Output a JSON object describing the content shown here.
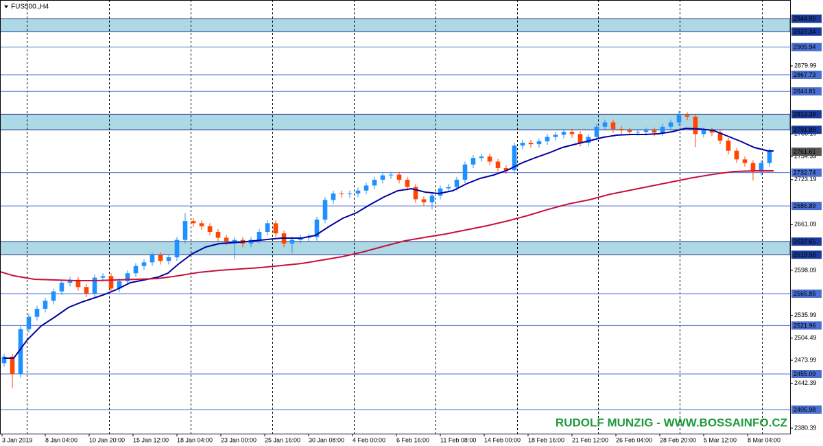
{
  "chart_data": {
    "type": "candlestick",
    "title": "FUS500.,H4",
    "watermark": "RUDOLF MUNZIG - WWW.BOSSAINFO.CZ",
    "up_color": "#1e90ff",
    "down_color": "#ff4500",
    "x": [
      1.5,
      4.5,
      7.5,
      10.5,
      13.5,
      16.5,
      19.5,
      22.5,
      25.5,
      28.5,
      31.5,
      34.5,
      37.5,
      40.5,
      43.5,
      46.5,
      49.5,
      52.5,
      55.5,
      58.5,
      61.5,
      64.5,
      67.5,
      70.5,
      73.5,
      76.5,
      79.5,
      82.5,
      85.5,
      88.5,
      91.5,
      94.5,
      97.5,
      100.5,
      103.5,
      106.5,
      109.5,
      112.5,
      115.5,
      118.5,
      121.5,
      124.5,
      127.5,
      130.5,
      133.5,
      136.5,
      139.5,
      142.5,
      145.5,
      148.5,
      151.5,
      154.5,
      157.5,
      160.5,
      163.5,
      166.5,
      169.5,
      172.5,
      175.5,
      178.5,
      181.5,
      184.5,
      187.5,
      190.5,
      193.5,
      196.5,
      199.5,
      202.5,
      205.5,
      208.5,
      211.5,
      214.5,
      217.5,
      220.5,
      223.5,
      226.5,
      229.5,
      232.5,
      235.5,
      238.5,
      241.5,
      244.5,
      247.5,
      250.5,
      253.5,
      256.5,
      259.5,
      262.5,
      265.5,
      268.5,
      271.5,
      274.5,
      277.5,
      280.5
    ],
    "open": [
      2470,
      2479,
      2455,
      2517,
      2534,
      2545,
      2556,
      2569,
      2581,
      2585,
      2575,
      2566,
      2588,
      2590,
      2573,
      2583,
      2594,
      2604,
      2609,
      2619,
      2611,
      2616,
      2640,
      2666,
      2663,
      2659,
      2651,
      2643,
      2638,
      2640,
      2635,
      2640,
      2651,
      2663,
      2649,
      2635,
      2640,
      2643,
      2644,
      2668,
      2695,
      2704,
      2703,
      2704,
      2708,
      2715,
      2723,
      2729,
      2730,
      2723,
      2713,
      2696,
      2692,
      2701,
      2711,
      2713,
      2723,
      2744,
      2753,
      2755,
      2748,
      2739,
      2736,
      2770,
      2774,
      2772,
      2776,
      2782,
      2785,
      2789,
      2786,
      2774,
      2782,
      2796,
      2802,
      2793,
      2791,
      2789,
      2789,
      2791,
      2788,
      2796,
      2802,
      2812,
      2810,
      2786,
      2791,
      2788,
      2777,
      2763,
      2751,
      2746,
      2734,
      2746
    ],
    "high": [
      2483,
      2483,
      2521,
      2538,
      2549,
      2560,
      2573,
      2585,
      2589,
      2589,
      2579,
      2592,
      2594,
      2594,
      2587,
      2598,
      2608,
      2613,
      2623,
      2623,
      2620,
      2644,
      2677,
      2670,
      2667,
      2663,
      2655,
      2647,
      2644,
      2644,
      2644,
      2655,
      2667,
      2667,
      2653,
      2644,
      2647,
      2648,
      2672,
      2699,
      2708,
      2708,
      2708,
      2712,
      2719,
      2727,
      2733,
      2734,
      2734,
      2727,
      2717,
      2700,
      2705,
      2715,
      2717,
      2727,
      2748,
      2757,
      2759,
      2759,
      2752,
      2743,
      2774,
      2778,
      2778,
      2780,
      2786,
      2789,
      2793,
      2793,
      2790,
      2786,
      2800,
      2806,
      2806,
      2797,
      2795,
      2793,
      2795,
      2795,
      2800,
      2806,
      2818,
      2816,
      2814,
      2795,
      2795,
      2792,
      2781,
      2767,
      2755,
      2750,
      2750,
      2766
    ],
    "low": [
      2465,
      2436,
      2450,
      2512,
      2529,
      2540,
      2551,
      2564,
      2576,
      2570,
      2561,
      2561,
      2583,
      2568,
      2568,
      2578,
      2589,
      2599,
      2604,
      2606,
      2606,
      2611,
      2635,
      2658,
      2654,
      2646,
      2638,
      2633,
      2613,
      2630,
      2630,
      2635,
      2646,
      2644,
      2630,
      2622,
      2635,
      2638,
      2639,
      2663,
      2690,
      2698,
      2698,
      2699,
      2703,
      2710,
      2718,
      2724,
      2718,
      2708,
      2691,
      2687,
      2682,
      2696,
      2706,
      2708,
      2718,
      2739,
      2748,
      2743,
      2734,
      2731,
      2731,
      2765,
      2767,
      2767,
      2771,
      2777,
      2780,
      2781,
      2769,
      2769,
      2777,
      2791,
      2788,
      2786,
      2784,
      2784,
      2784,
      2783,
      2783,
      2791,
      2797,
      2805,
      2768,
      2781,
      2783,
      2772,
      2758,
      2746,
      2741,
      2722,
      2729,
      2741
    ],
    "close": [
      2479,
      2455,
      2517,
      2534,
      2545,
      2556,
      2569,
      2581,
      2585,
      2575,
      2566,
      2588,
      2590,
      2573,
      2583,
      2594,
      2604,
      2609,
      2619,
      2611,
      2616,
      2640,
      2666,
      2663,
      2659,
      2651,
      2643,
      2638,
      2640,
      2635,
      2640,
      2651,
      2663,
      2649,
      2635,
      2640,
      2643,
      2644,
      2668,
      2695,
      2704,
      2703,
      2704,
      2708,
      2715,
      2723,
      2729,
      2730,
      2723,
      2713,
      2696,
      2692,
      2701,
      2711,
      2713,
      2723,
      2744,
      2753,
      2755,
      2748,
      2739,
      2736,
      2770,
      2774,
      2772,
      2776,
      2782,
      2785,
      2789,
      2786,
      2774,
      2782,
      2796,
      2802,
      2793,
      2791,
      2789,
      2789,
      2791,
      2788,
      2796,
      2802,
      2812,
      2810,
      2786,
      2791,
      2788,
      2777,
      2763,
      2751,
      2746,
      2734,
      2746,
      2761.61
    ],
    "lines": [
      {
        "color": "#0000a0",
        "x": [
          1.25,
          5,
          10,
          15,
          20,
          25,
          30,
          37.5,
          42.5,
          47.5,
          52.5,
          57.5,
          61.25,
          65,
          70,
          75,
          80,
          87.5,
          95,
          102.5,
          110,
          115,
          120,
          125,
          130,
          135,
          140,
          145,
          150,
          155,
          160,
          165,
          170,
          175,
          180,
          185,
          190,
          195,
          200,
          205,
          210,
          215,
          220,
          225,
          230,
          235,
          240,
          245,
          250,
          255,
          260,
          265,
          270,
          275,
          280,
          282
        ],
        "values": [
          2476.9,
          2476.9,
          2502.4,
          2521.4,
          2533.7,
          2546.9,
          2554.5,
          2564.0,
          2571.5,
          2581.0,
          2584.8,
          2588.6,
          2594.2,
          2606.5,
          2620.7,
          2630.2,
          2634.9,
          2636.8,
          2639.7,
          2642.5,
          2642.5,
          2646.3,
          2658.6,
          2669.9,
          2677.5,
          2688.9,
          2699.3,
          2707.8,
          2710.6,
          2705.9,
          2704.0,
          2707.8,
          2717.3,
          2724.8,
          2729.6,
          2736.2,
          2745.7,
          2753.2,
          2759.8,
          2767.4,
          2772.2,
          2776.9,
          2781.6,
          2784.5,
          2785.4,
          2785.4,
          2786.3,
          2789.2,
          2793.9,
          2793.0,
          2791.1,
          2783.5,
          2775.9,
          2767.4,
          2762.7,
          2762.7
        ]
      },
      {
        "color": "#c8103c",
        "x": [
          0,
          5,
          12.5,
          20,
          27.5,
          35,
          42.5,
          50,
          57.5,
          65,
          72.5,
          80,
          87.5,
          95,
          102.5,
          110,
          117.5,
          125,
          132.5,
          140,
          147.5,
          155,
          162.5,
          170,
          177.5,
          185,
          192.5,
          200,
          207.5,
          215,
          222.5,
          230,
          237.5,
          245,
          252.5,
          260,
          267.5,
          275,
          282
        ],
        "values": [
          2596.1,
          2590.5,
          2585.7,
          2584.8,
          2583.8,
          2583.8,
          2584.8,
          2585.7,
          2586.7,
          2590.5,
          2595.2,
          2598.0,
          2599.9,
          2601.8,
          2604.6,
          2607.5,
          2612.2,
          2617.0,
          2623.6,
          2631.2,
          2638.7,
          2643.5,
          2648.2,
          2653.9,
          2659.5,
          2666.2,
          2673.7,
          2682.3,
          2689.8,
          2695.5,
          2703.1,
          2708.7,
          2714.4,
          2720.1,
          2725.8,
          2730.5,
          2734.3,
          2735.2,
          2735.2
        ]
      }
    ],
    "zones": [
      [
        2927.34,
        2944.99
      ],
      [
        2791.89,
        2813.39
      ],
      [
        2619.58,
        2637.65
      ]
    ],
    "zone_color": "#add8e6",
    "levels": [
      2905.94,
      2867.73,
      2844.81,
      2732.74,
      2686.89,
      2565.85,
      2521.96,
      2455.09,
      2405.98
    ],
    "level_color": "#4a6fd0",
    "xlim": [
      0,
      288
    ],
    "xticks": [
      {
        "value": 0.75,
        "label": "3 Jan 2019"
      },
      {
        "value": 16.5,
        "label": "8 Jan 04:00"
      },
      {
        "value": 32.5,
        "label": "10 Jan 20:00"
      },
      {
        "value": 48.5,
        "label": "15 Jan 12:00"
      },
      {
        "value": 64.5,
        "label": "18 Jan 04:00"
      },
      {
        "value": 80.5,
        "label": "23 Jan 00:00"
      },
      {
        "value": 96.5,
        "label": "25 Jan 16:00"
      },
      {
        "value": 112.5,
        "label": "30 Jan 08:00"
      },
      {
        "value": 128.5,
        "label": "4 Feb 00:00"
      },
      {
        "value": 144.5,
        "label": "6 Feb 16:00"
      },
      {
        "value": 160.5,
        "label": "11 Feb 08:00"
      },
      {
        "value": 176.5,
        "label": "14 Feb 00:00"
      },
      {
        "value": 192.5,
        "label": "18 Feb 16:00"
      },
      {
        "value": 208.5,
        "label": "21 Feb 12:00"
      },
      {
        "value": 224.5,
        "label": "26 Feb 04:00"
      },
      {
        "value": 240.5,
        "label": "28 Feb 20:00"
      },
      {
        "value": 256.5,
        "label": "5 Mar 12:00"
      },
      {
        "value": 272.5,
        "label": "8 Mar 04:00"
      }
    ],
    "ylim": [
      2372.8,
      2970.87
    ],
    "yticks": [
      2879.99,
      2786.19,
      2754.99,
      2723.19,
      2661.09,
      2598.09,
      2535.99,
      2504.49,
      2473.99,
      2442.39,
      2380.39
    ]
  }
}
